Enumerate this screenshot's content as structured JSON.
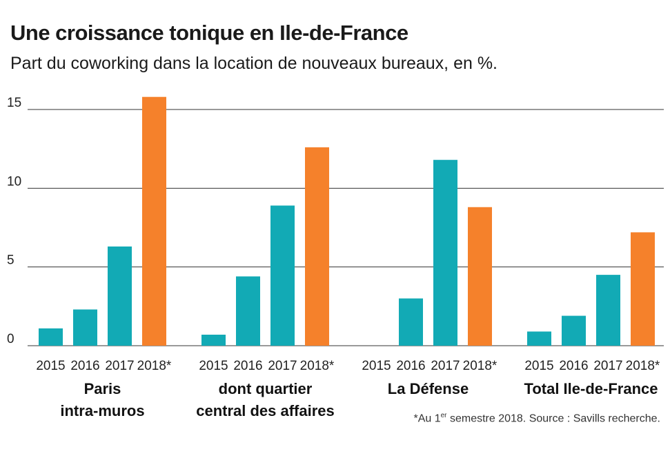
{
  "chart_data": {
    "type": "bar",
    "title": "Une croissance tonique en Ile-de-France",
    "subtitle": "Part du coworking dans la location de nouveaux bureaux, en %.",
    "ylim": [
      0,
      15
    ],
    "yticks": [
      "0",
      "5",
      "10",
      "15"
    ],
    "grid": true,
    "colors": {
      "past_years": "#12aab5",
      "year_2018": "#f5812b"
    },
    "groups": [
      {
        "label_lines": [
          "Paris",
          "intra-muros"
        ],
        "years": [
          "2015",
          "2016",
          "2017",
          "2018*"
        ],
        "values": [
          1.1,
          2.3,
          6.3,
          15.8
        ]
      },
      {
        "label_lines": [
          "dont quartier",
          "central des affaires"
        ],
        "years": [
          "2015",
          "2016",
          "2017",
          "2018*"
        ],
        "values": [
          0.7,
          4.4,
          8.9,
          12.6
        ]
      },
      {
        "label_lines": [
          "La Défense"
        ],
        "years": [
          "2015",
          "2016",
          "2017",
          "2018*"
        ],
        "values": [
          0,
          3.0,
          11.8,
          8.8
        ]
      },
      {
        "label_lines": [
          "Total Ile-de-France"
        ],
        "years": [
          "2015",
          "2016",
          "2017",
          "2018*"
        ],
        "values": [
          0.9,
          1.9,
          4.5,
          7.2
        ]
      }
    ]
  },
  "footnote": {
    "prefix": "*Au 1",
    "superscript": "er",
    "suffix": " semestre 2018. Source : Savills recherche."
  }
}
